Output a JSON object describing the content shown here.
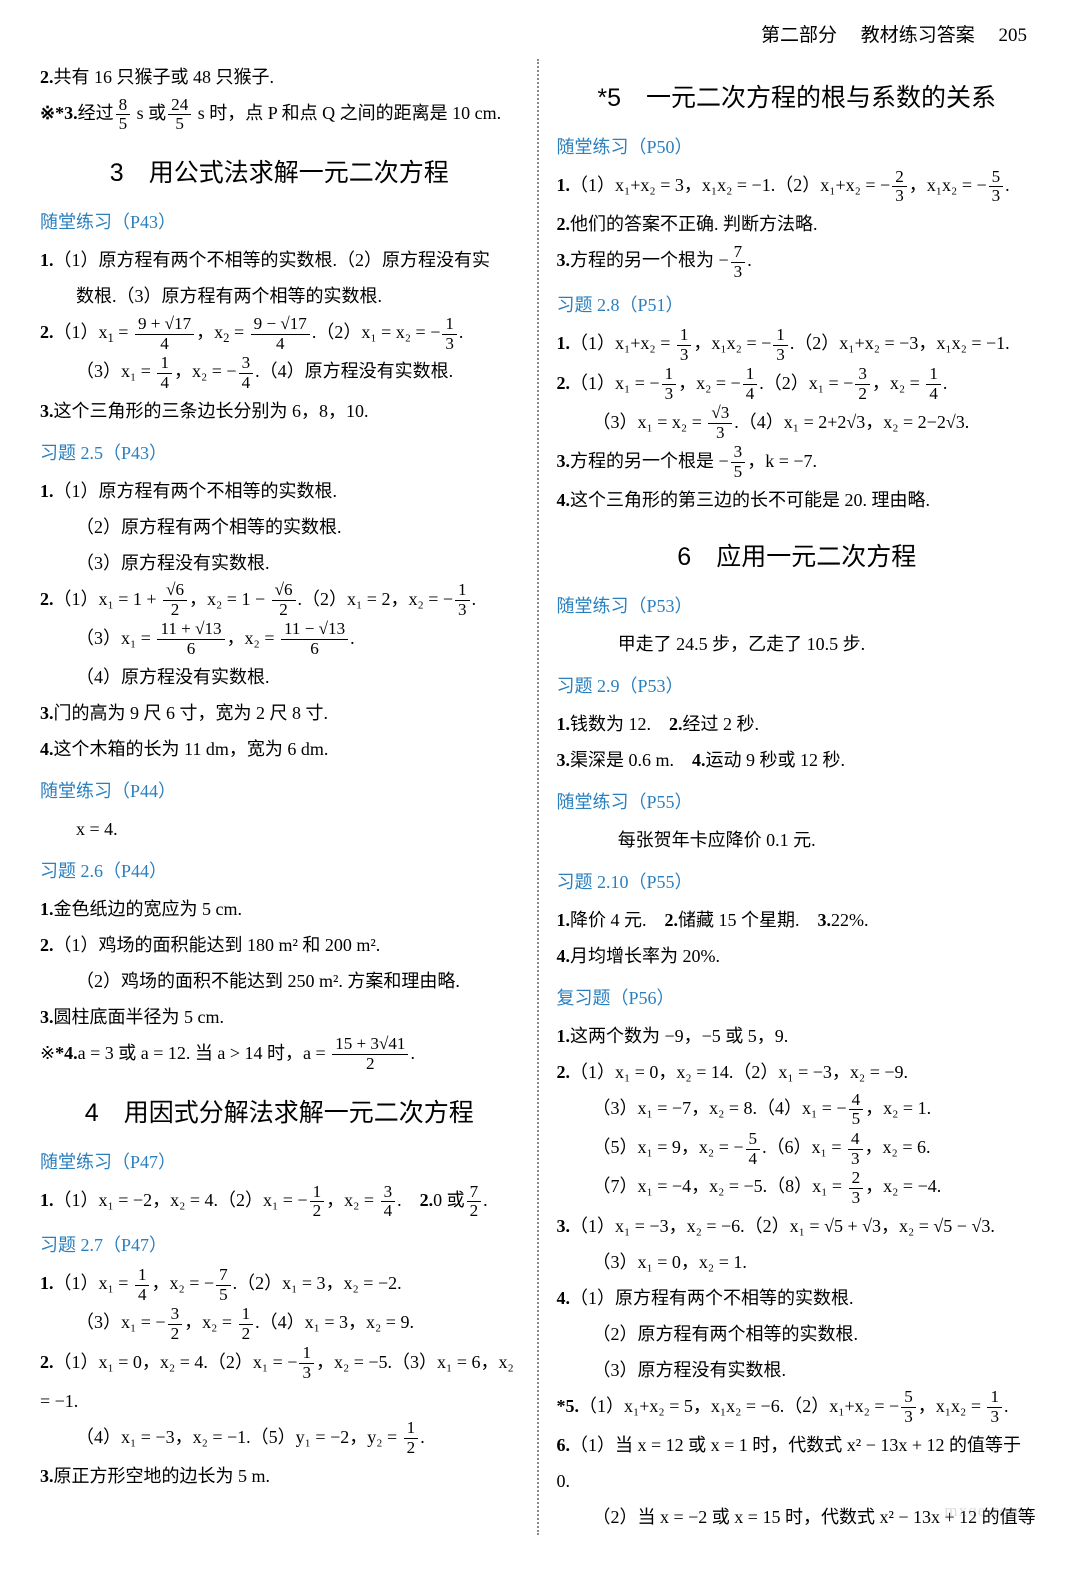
{
  "header": {
    "part": "第二部分",
    "title": "教材练习答案",
    "page": "205"
  },
  "left": {
    "pre": [
      {
        "n": "2.",
        "t": "共有 16 只猴子或 48 只猴子."
      },
      {
        "n": "*3.",
        "t": "经过",
        "frac1": {
          "num": "8",
          "den": "5"
        },
        "mid": " s 或",
        "frac2": {
          "num": "24",
          "den": "5"
        },
        "tail": " s 时，点 P 和点 Q 之间的距离是 10 cm."
      }
    ],
    "s3": {
      "title": "3　用公式法求解一元二次方程",
      "sub1": "随堂练习（P43）",
      "q1": {
        "n": "1.",
        "a": "（1）原方程有两个不相等的实数根.（2）原方程没有实",
        "b": "数根.（3）原方程有两个相等的实数根."
      },
      "q2": {
        "n": "2.",
        "a": {
          "pre": "（1）x",
          "fr1": {
            "num": "9 + √17",
            "den": "4"
          },
          "mid": "，x",
          "fr2": {
            "num": "9 − √17",
            "den": "4"
          },
          "tail": ".（2）x₁ = x₂ = −",
          "fr3": {
            "num": "1",
            "den": "3"
          },
          "end": "."
        },
        "b": {
          "pre": "（3）x₁ = ",
          "fr1": {
            "num": "1",
            "den": "4"
          },
          "mid": "，x₂ = −",
          "fr2": {
            "num": "3",
            "den": "4"
          },
          "tail": ".（4）原方程没有实数根."
        }
      },
      "q3": {
        "n": "3.",
        "t": "这个三角形的三条边长分别为 6，8，10."
      },
      "sub2": "习题 2.5（P43）",
      "e1": {
        "n": "1.",
        "a": "（1）原方程有两个不相等的实数根.",
        "b": "（2）原方程有两个相等的实数根.",
        "c": "（3）原方程没有实数根."
      },
      "e2": {
        "n": "2.",
        "a": {
          "pre": "（1）x₁ = 1 + ",
          "fr1": {
            "num": "√6",
            "den": "2"
          },
          "mid": "，x₂ = 1 − ",
          "fr2": {
            "num": "√6",
            "den": "2"
          },
          "tail": ".（2）x₁ = 2，x₂ = −",
          "fr3": {
            "num": "1",
            "den": "3"
          },
          "end": "."
        },
        "b": {
          "pre": "（3）x₁ = ",
          "fr1": {
            "num": "11 + √13",
            "den": "6"
          },
          "mid": "，x₂ = ",
          "fr2": {
            "num": "11 − √13",
            "den": "6"
          },
          "tail": "."
        },
        "c": "（4）原方程没有实数根."
      },
      "e3": {
        "n": "3.",
        "t": "门的高为 9 尺 6 寸，宽为 2 尺 8 寸."
      },
      "e4": {
        "n": "4.",
        "t": "这个木箱的长为 11 dm，宽为 6 dm."
      },
      "sub3": "随堂练习（P44）",
      "p44": "x = 4.",
      "sub4": "习题 2.6（P44）",
      "f1": {
        "n": "1.",
        "t": "金色纸边的宽应为 5 cm."
      },
      "f2": {
        "n": "2.",
        "a": "（1）鸡场的面积能达到 180 m² 和 200 m².",
        "b": "（2）鸡场的面积不能达到 250 m². 方案和理由略."
      },
      "f3": {
        "n": "3.",
        "t": "圆柱底面半径为 5 cm."
      },
      "f4": {
        "n": "*4.",
        "pre": "a = 3 或 a = 12. 当 a > 14 时，a = ",
        "fr": {
          "num": "15 + 3√41",
          "den": "2"
        },
        "tail": "."
      }
    },
    "s4": {
      "title": "4　用因式分解法求解一元二次方程",
      "sub1": "随堂练习（P47）",
      "q1": {
        "n": "1.",
        "pre": "（1）x₁ = −2，x₂ = 4.（2）x₁ = −",
        "fr1": {
          "num": "1",
          "den": "2"
        },
        "mid": "，x₂ = ",
        "fr2": {
          "num": "3",
          "den": "4"
        },
        "tail": ".　",
        "q2n": "2.",
        "q2pre": "0 或",
        "fr3": {
          "num": "7",
          "den": "2"
        },
        "q2tail": "."
      },
      "sub2": "习题 2.7（P47）",
      "e1": {
        "n": "1.",
        "a": {
          "pre": "（1）x₁ = ",
          "fr1": {
            "num": "1",
            "den": "4"
          },
          "mid": "，x₂ = −",
          "fr2": {
            "num": "7",
            "den": "5"
          },
          "tail": ".（2）x₁ = 3，x₂ = −2."
        },
        "b": {
          "pre": "（3）x₁ = −",
          "fr1": {
            "num": "3",
            "den": "2"
          },
          "mid": "，x₂ = ",
          "fr2": {
            "num": "1",
            "den": "2"
          },
          "tail": ".（4）x₁ = 3，x₂ = 9."
        }
      },
      "e2": {
        "n": "2.",
        "a": {
          "pre": "（1）x₁ = 0，x₂ = 4.（2）x₁ = −",
          "fr1": {
            "num": "1",
            "den": "3"
          },
          "mid": "，x₂ = −5.（3）x₁ = 6，x₂ = −1."
        },
        "b": {
          "pre": "（4）x₁ = −3，x₂ = −1.（5）y₁ = −2，y₂ = ",
          "fr1": {
            "num": "1",
            "den": "2"
          },
          "tail": "."
        }
      },
      "e3": {
        "n": "3.",
        "t": "原正方形空地的边长为 5 m."
      }
    }
  },
  "right": {
    "s5": {
      "title": "*5　一元二次方程的根与系数的关系",
      "sub1": "随堂练习（P50）",
      "q1": {
        "n": "1.",
        "pre": "（1）x₁+x₂ = 3，x₁x₂ = −1.（2）x₁+x₂ = −",
        "fr1": {
          "num": "2",
          "den": "3"
        },
        "mid": "，x₁x₂ = −",
        "fr2": {
          "num": "5",
          "den": "3"
        },
        "tail": "."
      },
      "q2": {
        "n": "2.",
        "t": "他们的答案不正确. 判断方法略."
      },
      "q3": {
        "n": "3.",
        "pre": "方程的另一个根为 −",
        "fr": {
          "num": "7",
          "den": "3"
        },
        "tail": "."
      },
      "sub2": "习题 2.8（P51）",
      "e1": {
        "n": "1.",
        "pre": "（1）x₁+x₂ = ",
        "fr1": {
          "num": "1",
          "den": "3"
        },
        "mid": "，x₁x₂ = −",
        "fr2": {
          "num": "1",
          "den": "3"
        },
        "tail": ".（2）x₁+x₂ = −3，x₁x₂ = −1."
      },
      "e2": {
        "n": "2.",
        "a": {
          "pre": "（1）x₁ = −",
          "fr1": {
            "num": "1",
            "den": "3"
          },
          "mid": "，x₂ = −",
          "fr2": {
            "num": "1",
            "den": "4"
          },
          "tail": ".（2）x₁ = −",
          "fr3": {
            "num": "3",
            "den": "2"
          },
          "mid2": "，x₂ = ",
          "fr4": {
            "num": "1",
            "den": "4"
          },
          "end": "."
        },
        "b": {
          "pre": "（3）x₁ = x₂ = ",
          "fr1": {
            "num": "√3",
            "den": "3"
          },
          "tail": ".（4）x₁ = 2+2√3，x₂ = 2−2√3."
        }
      },
      "e3": {
        "n": "3.",
        "pre": "方程的另一个根是 −",
        "fr": {
          "num": "3",
          "den": "5"
        },
        "tail": "，k = −7."
      },
      "e4": {
        "n": "4.",
        "t": "这个三角形的第三边的长不可能是 20. 理由略."
      }
    },
    "s6": {
      "title": "6　应用一元二次方程",
      "sub1": "随堂练习（P53）",
      "p53": "甲走了 24.5 步，乙走了 10.5 步.",
      "sub2": "习题 2.9（P53）",
      "g1": {
        "n": "1.",
        "t": "钱数为 12.　",
        "n2": "2.",
        "t2": "经过 2 秒."
      },
      "g3": {
        "n": "3.",
        "t": "渠深是 0.6 m.　",
        "n2": "4.",
        "t2": "运动 9 秒或 12 秒."
      },
      "sub3": "随堂练习（P55）",
      "p55": "每张贺年卡应降价 0.1 元.",
      "sub4": "习题 2.10（P55）",
      "h1": {
        "n": "1.",
        "t": "降价 4 元.　",
        "n2": "2.",
        "t2": "储藏 15 个星期.　",
        "n3": "3.",
        "t3": "22%."
      },
      "h4": {
        "n": "4.",
        "t": "月均增长率为 20%."
      },
      "sub5": "复习题（P56）",
      "r1": {
        "n": "1.",
        "t": "这两个数为 −9，−5 或 5，9."
      },
      "r2": {
        "n": "2.",
        "a": "（1）x₁ = 0，x₂ = 14.（2）x₁ = −3，x₂ = −9.",
        "b": {
          "pre": "（3）x₁ = −7，x₂ = 8.（4）x₁ = −",
          "fr1": {
            "num": "4",
            "den": "5"
          },
          "tail": "，x₂ = 1."
        },
        "c": {
          "pre": "（5）x₁ = 9，x₂ = −",
          "fr1": {
            "num": "5",
            "den": "4"
          },
          "mid": ".（6）x₁ = ",
          "fr2": {
            "num": "4",
            "den": "3"
          },
          "tail": "，x₂ = 6."
        },
        "d": {
          "pre": "（7）x₁ = −4，x₂ = −5.（8）x₁ = ",
          "fr1": {
            "num": "2",
            "den": "3"
          },
          "tail": "，x₂ = −4."
        }
      },
      "r3": {
        "n": "3.",
        "a": "（1）x₁ = −3，x₂ = −6.（2）x₁ = √5 + √3，x₂ = √5 − √3.",
        "b": "（3）x₁ = 0，x₂ = 1."
      },
      "r4": {
        "n": "4.",
        "a": "（1）原方程有两个不相等的实数根.",
        "b": "（2）原方程有两个相等的实数根.",
        "c": "（3）原方程没有实数根."
      },
      "r5": {
        "n": "*5.",
        "pre": "（1）x₁+x₂ = 5，x₁x₂ = −6.（2）x₁+x₂ = −",
        "fr1": {
          "num": "5",
          "den": "3"
        },
        "mid": "，x₁x₂ = ",
        "fr2": {
          "num": "1",
          "den": "3"
        },
        "tail": "."
      },
      "r6": {
        "n": "6.",
        "a": "（1）当 x = 12 或 x = 1 时，代数式 x² − 13x + 12 的值等于 0.",
        "b": "（2）当 x = −2 或 x = 15 时，代数式 x² − 13x + 12 的值等"
      }
    }
  },
  "watermark": {
    "site": "mxqe.com"
  }
}
